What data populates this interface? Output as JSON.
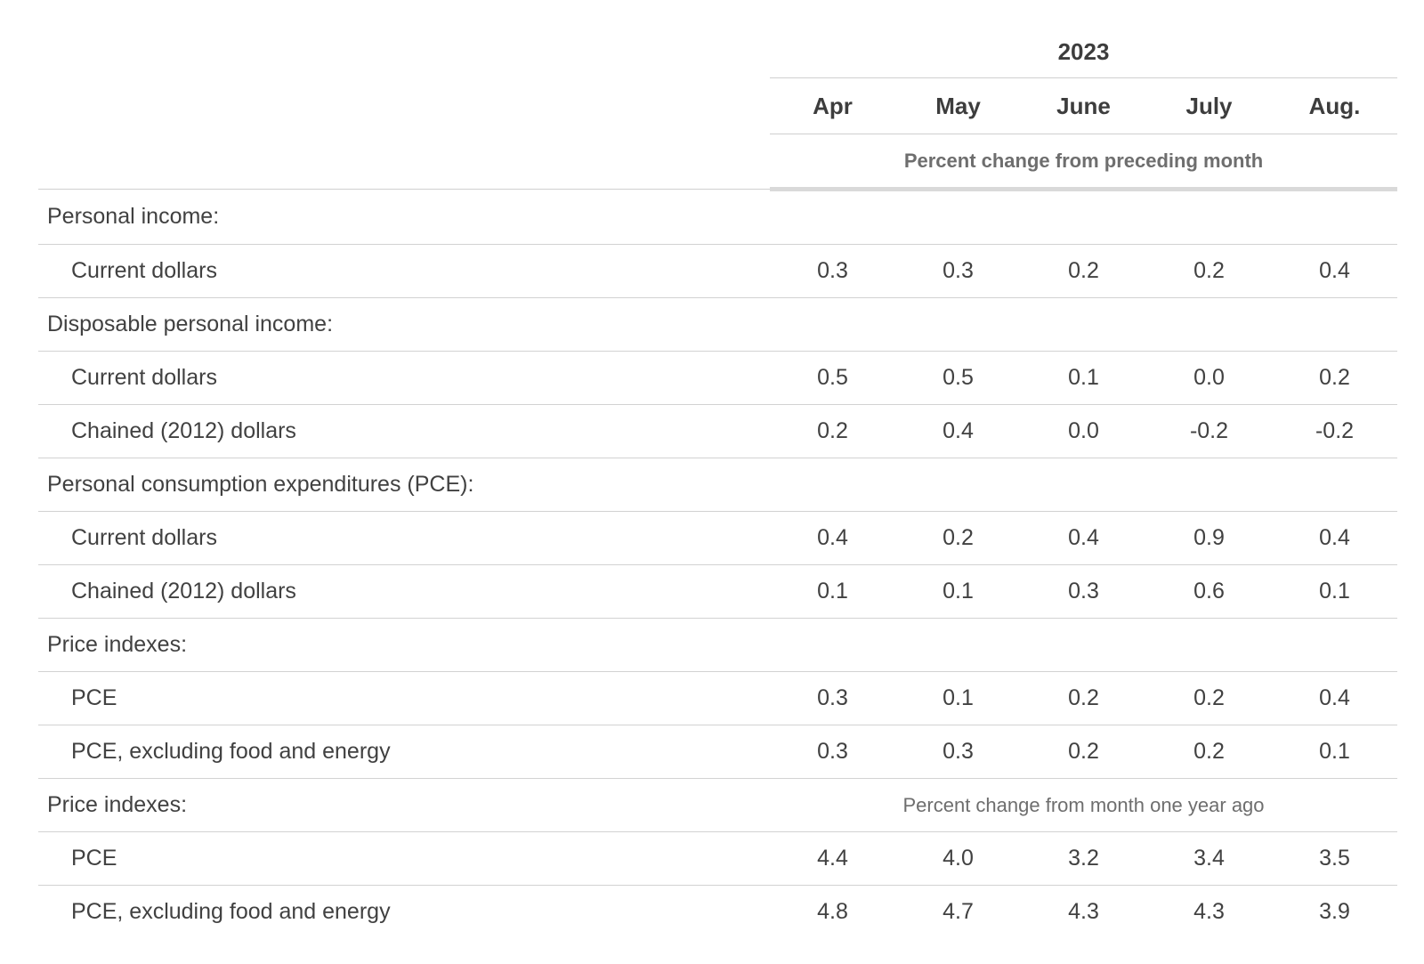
{
  "table": {
    "year": "2023",
    "months": [
      "Apr",
      "May",
      "June",
      "July",
      "Aug."
    ],
    "units_preceding_month": "Percent change from preceding month",
    "units_year_ago": "Percent change from month one year ago",
    "rows": [
      {
        "label": "Personal income:",
        "indent": false,
        "values": null
      },
      {
        "label": "Current dollars",
        "indent": true,
        "values": [
          "0.3",
          "0.3",
          "0.2",
          "0.2",
          "0.4"
        ]
      },
      {
        "label": "Disposable personal income:",
        "indent": false,
        "values": null
      },
      {
        "label": "Current dollars",
        "indent": true,
        "values": [
          "0.5",
          "0.5",
          "0.1",
          "0.0",
          "0.2"
        ]
      },
      {
        "label": "Chained (2012) dollars",
        "indent": true,
        "values": [
          "0.2",
          "0.4",
          "0.0",
          "-0.2",
          "-0.2"
        ]
      },
      {
        "label": "Personal consumption expenditures (PCE):",
        "indent": false,
        "values": null
      },
      {
        "label": "Current dollars",
        "indent": true,
        "values": [
          "0.4",
          "0.2",
          "0.4",
          "0.9",
          "0.4"
        ]
      },
      {
        "label": "Chained (2012) dollars",
        "indent": true,
        "values": [
          "0.1",
          "0.1",
          "0.3",
          "0.6",
          "0.1"
        ]
      },
      {
        "label": "Price indexes:",
        "indent": false,
        "values": null
      },
      {
        "label": "PCE",
        "indent": true,
        "values": [
          "0.3",
          "0.1",
          "0.2",
          "0.2",
          "0.4"
        ]
      },
      {
        "label": "PCE, excluding food and energy",
        "indent": true,
        "values": [
          "0.3",
          "0.3",
          "0.2",
          "0.2",
          "0.1"
        ]
      },
      {
        "label": "Price indexes:",
        "indent": false,
        "values": null,
        "units_subtitle": "Percent change from month one year ago"
      },
      {
        "label": "PCE",
        "indent": true,
        "values": [
          "4.4",
          "4.0",
          "3.2",
          "3.4",
          "3.5"
        ]
      },
      {
        "label": "PCE, excluding food and energy",
        "indent": true,
        "values": [
          "4.8",
          "4.7",
          "4.3",
          "4.3",
          "3.9"
        ]
      }
    ]
  },
  "colors": {
    "text_dark": "#414141",
    "header_text": "#3d3d3d",
    "subtitle_gray": "#6e6e6e",
    "border_thin": "#d2d2d2",
    "border_thick": "#d9d9d9",
    "background": "#ffffff"
  },
  "chart_data": {
    "type": "table",
    "title": "2023",
    "columns": [
      "Apr",
      "May",
      "June",
      "July",
      "Aug."
    ],
    "sections": [
      {
        "units": "Percent change from preceding month",
        "series": [
          {
            "group": "Personal income",
            "name": "Current dollars",
            "values": [
              0.3,
              0.3,
              0.2,
              0.2,
              0.4
            ]
          },
          {
            "group": "Disposable personal income",
            "name": "Current dollars",
            "values": [
              0.5,
              0.5,
              0.1,
              0.0,
              0.2
            ]
          },
          {
            "group": "Disposable personal income",
            "name": "Chained (2012) dollars",
            "values": [
              0.2,
              0.4,
              0.0,
              -0.2,
              -0.2
            ]
          },
          {
            "group": "Personal consumption expenditures (PCE)",
            "name": "Current dollars",
            "values": [
              0.4,
              0.2,
              0.4,
              0.9,
              0.4
            ]
          },
          {
            "group": "Personal consumption expenditures (PCE)",
            "name": "Chained (2012) dollars",
            "values": [
              0.1,
              0.1,
              0.3,
              0.6,
              0.1
            ]
          },
          {
            "group": "Price indexes",
            "name": "PCE",
            "values": [
              0.3,
              0.1,
              0.2,
              0.2,
              0.4
            ]
          },
          {
            "group": "Price indexes",
            "name": "PCE, excluding food and energy",
            "values": [
              0.3,
              0.3,
              0.2,
              0.2,
              0.1
            ]
          }
        ]
      },
      {
        "units": "Percent change from month one year ago",
        "series": [
          {
            "group": "Price indexes",
            "name": "PCE",
            "values": [
              4.4,
              4.0,
              3.2,
              3.4,
              3.5
            ]
          },
          {
            "group": "Price indexes",
            "name": "PCE, excluding food and energy",
            "values": [
              4.8,
              4.7,
              4.3,
              4.3,
              3.9
            ]
          }
        ]
      }
    ]
  }
}
